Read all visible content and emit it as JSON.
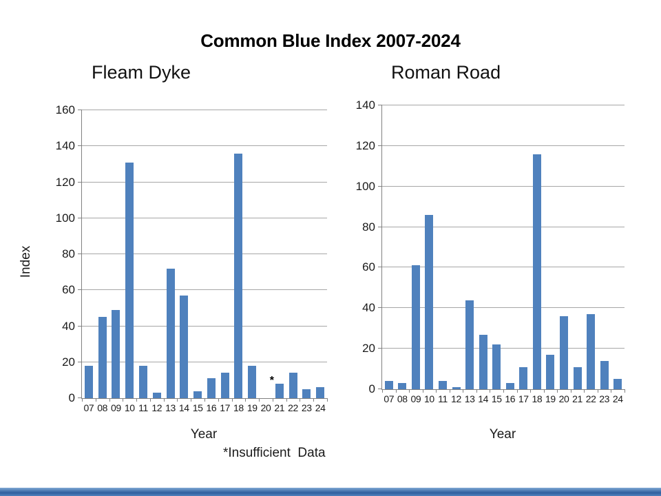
{
  "page": {
    "title": "Common Blue Index 2007-2024",
    "footnote": "*Insufficient  Data",
    "accent_color": "#4f81bd",
    "bottom_bar_colors": [
      "#7fa8d4",
      "#2f5f9e",
      "#4f81bd"
    ]
  },
  "chart_data": [
    {
      "type": "bar",
      "title": "Fleam Dyke",
      "xlabel": "Year",
      "ylabel": "Index",
      "ylim": [
        0,
        160
      ],
      "yticks": [
        0,
        20,
        40,
        60,
        80,
        100,
        120,
        140,
        160
      ],
      "grid": true,
      "legend": false,
      "bar_color": "#4f81bd",
      "categories": [
        "07",
        "08",
        "09",
        "10",
        "11",
        "12",
        "13",
        "14",
        "15",
        "16",
        "17",
        "18",
        "19",
        "20",
        "21",
        "22",
        "23",
        "24"
      ],
      "values": [
        18,
        45,
        49,
        131,
        18,
        3,
        72,
        57,
        4,
        11,
        14,
        136,
        18,
        null,
        8,
        14,
        5,
        6
      ],
      "annotations": [
        {
          "category": "21",
          "text": "*"
        }
      ]
    },
    {
      "type": "bar",
      "title": "Roman Road",
      "xlabel": "Year",
      "ylabel": "",
      "ylim": [
        0,
        140
      ],
      "yticks": [
        0,
        20,
        40,
        60,
        80,
        100,
        120,
        140
      ],
      "grid": true,
      "legend": false,
      "bar_color": "#4f81bd",
      "categories": [
        "07",
        "08",
        "09",
        "10",
        "11",
        "12",
        "13",
        "14",
        "15",
        "16",
        "17",
        "18",
        "19",
        "20",
        "21",
        "22",
        "23",
        "24"
      ],
      "values": [
        4,
        3,
        61,
        86,
        4,
        1,
        44,
        27,
        22,
        3,
        11,
        116,
        17,
        36,
        11,
        37,
        14,
        5
      ],
      "annotations": []
    }
  ]
}
